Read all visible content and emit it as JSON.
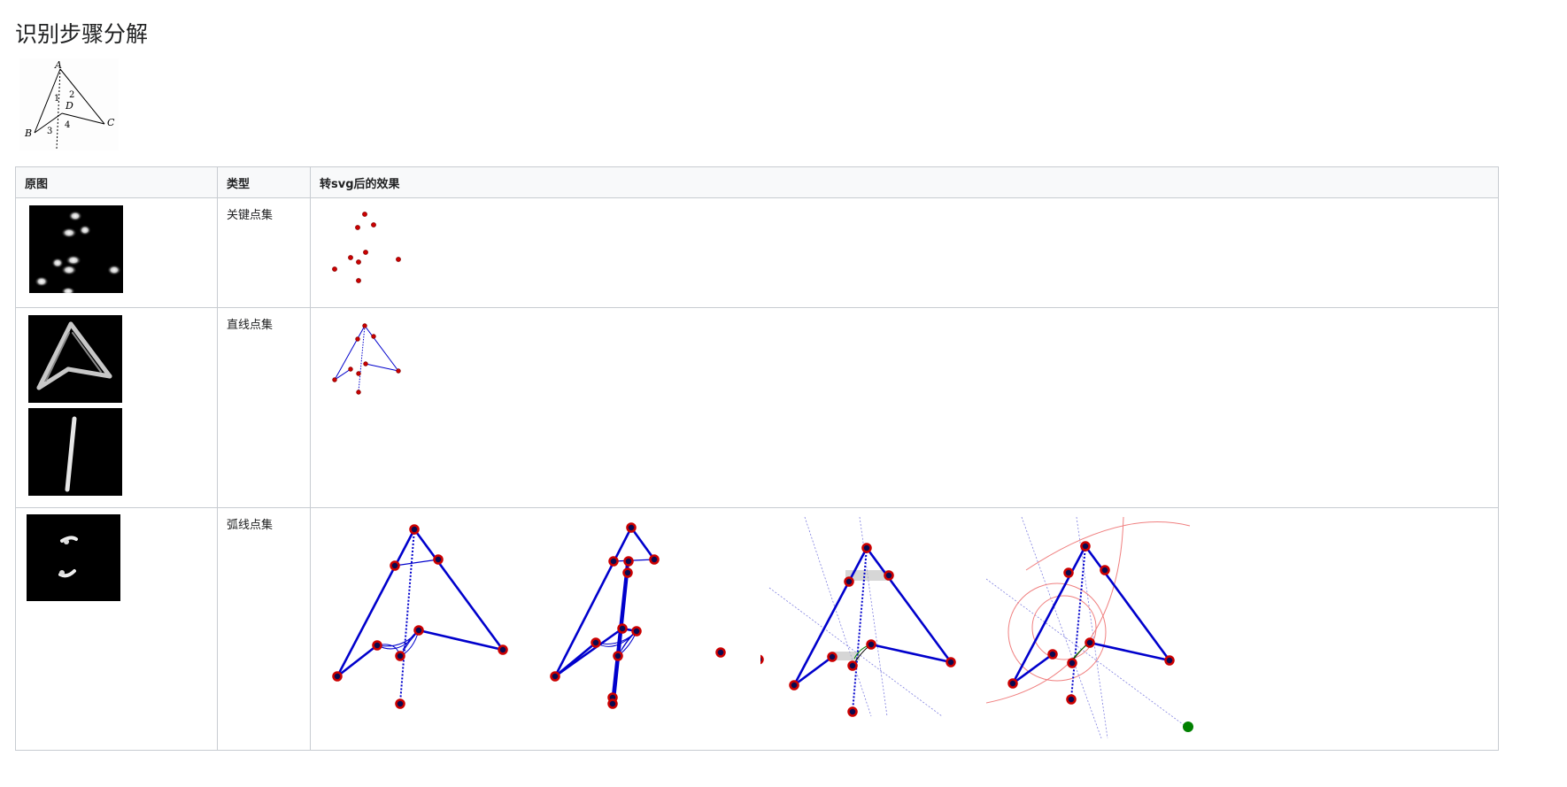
{
  "page": {
    "title": "识别步骤分解"
  },
  "figure": {
    "labels": {
      "A": "A",
      "B": "B",
      "C": "C",
      "D": "D",
      "n1": "1",
      "n2": "2",
      "n3": "3",
      "n4": "4"
    }
  },
  "table": {
    "headers": {
      "original": "原图",
      "type": "类型",
      "svg_effect": "转svg后的效果"
    },
    "rows": [
      {
        "type": "关键点集"
      },
      {
        "type": "直线点集"
      },
      {
        "type": "弧线点集"
      }
    ]
  },
  "colors": {
    "point_fill": "#cc0000",
    "line": "#0000cc",
    "thin_line": "#3333aa",
    "guide_line": "#8080e0",
    "circle": "#f08080",
    "center_point": "#008000",
    "border": "#c8ccd1",
    "header_bg": "#f8f9fa"
  }
}
